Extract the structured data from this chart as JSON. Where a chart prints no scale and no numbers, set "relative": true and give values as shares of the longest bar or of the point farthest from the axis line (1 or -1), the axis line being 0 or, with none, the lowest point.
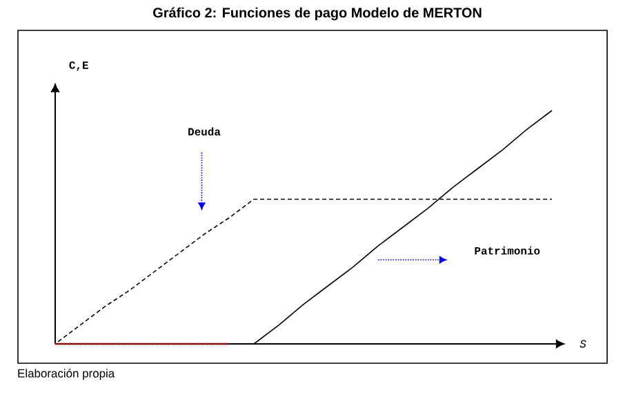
{
  "chart_data": {
    "type": "line",
    "title": "Gráfico 2: Funciones de pago Modelo de MERTON",
    "xlabel": "S",
    "ylabel": "C,E",
    "annotations": [
      "Deuda",
      "Patrimonio",
      "Elaboración propia"
    ],
    "relative": true,
    "categories": [
      null,
      null,
      null,
      null,
      null,
      null,
      null,
      null,
      null,
      null,
      null,
      null,
      null,
      null,
      null,
      null,
      null,
      null,
      null,
      null,
      null
    ],
    "series": [
      {
        "color": "#000000",
        "line_style": "dashed",
        "values": [
          0,
          0.08,
          0.16,
          0.23,
          0.31,
          0.39,
          0.47,
          0.54,
          0.62,
          0.62,
          0.62,
          0.62,
          0.62,
          0.62,
          0.62,
          0.62,
          0.62,
          0.62,
          0.62,
          0.62,
          0.62
        ]
      },
      {
        "color": "#000000",
        "line_style": "solid",
        "values": [
          null,
          null,
          null,
          null,
          null,
          null,
          null,
          null,
          0,
          0.08,
          0.17,
          0.25,
          0.33,
          0.42,
          0.5,
          0.58,
          0.67,
          0.75,
          0.83,
          0.92,
          1
        ]
      },
      {
        "color": "#ff0000",
        "line_style": "dotted",
        "values": [
          0,
          0,
          0,
          0,
          0,
          0,
          0,
          0,
          null,
          null,
          null,
          null,
          null,
          null,
          null,
          null,
          null,
          null,
          null,
          null,
          null
        ]
      }
    ]
  }
}
